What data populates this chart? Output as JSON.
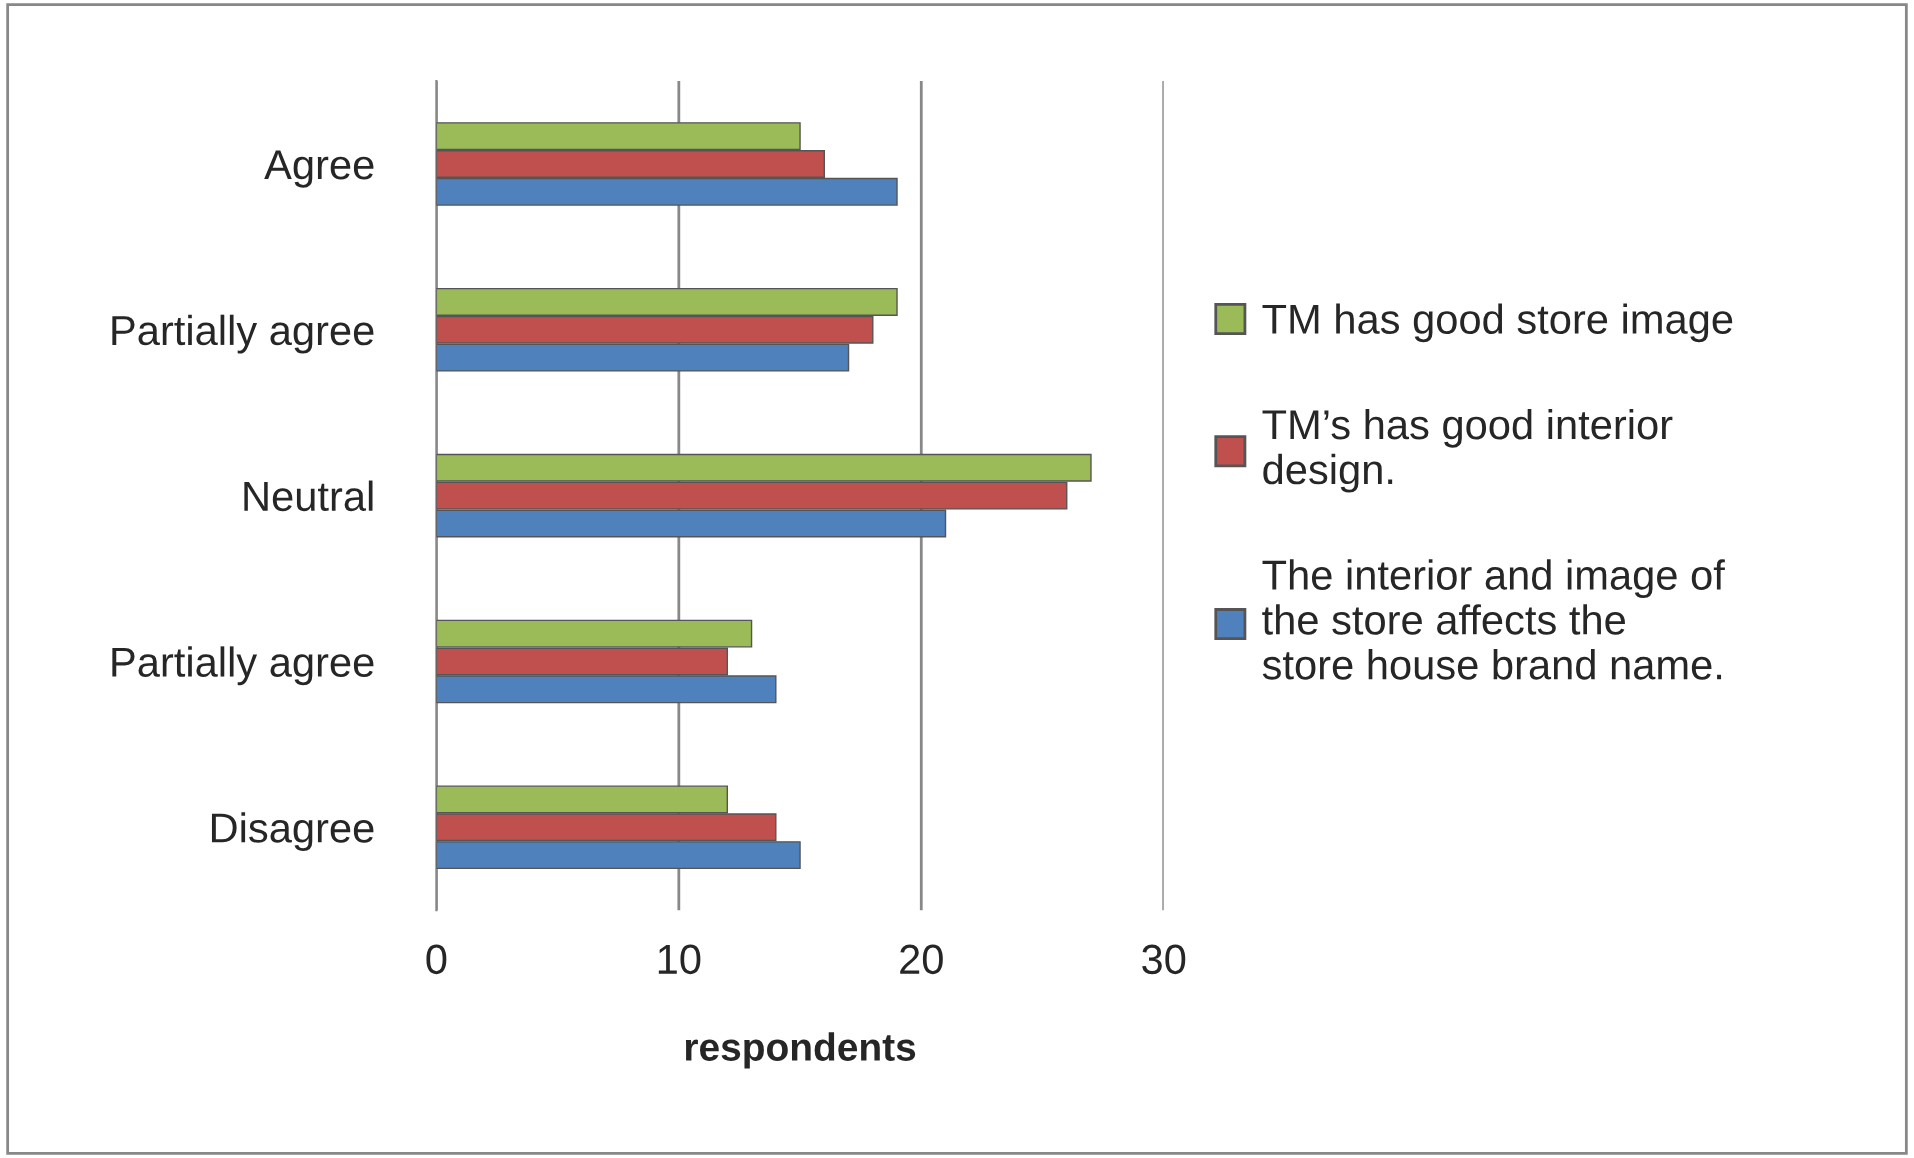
{
  "chart_data": {
    "type": "bar",
    "orientation": "horizontal",
    "xlabel": "respondents",
    "categories": [
      "Agree",
      "Partially agree",
      "Neutral",
      "Partially agree",
      "Disagree"
    ],
    "series": [
      {
        "name": "The interior and image of the store affects the store house brand name.",
        "color": "#4f81bd",
        "values": [
          19,
          17,
          21,
          14,
          15
        ]
      },
      {
        "name": "TM’s has good interior design.",
        "color": "#c0504d",
        "values": [
          16,
          18,
          26,
          12,
          14
        ]
      },
      {
        "name": "TM has good store image",
        "color": "#9bbb59",
        "values": [
          15,
          19,
          27,
          13,
          12
        ]
      }
    ],
    "xlim": [
      0,
      30
    ],
    "xticks": [
      0,
      10,
      20,
      30
    ],
    "grid": "x",
    "legend": "right"
  }
}
